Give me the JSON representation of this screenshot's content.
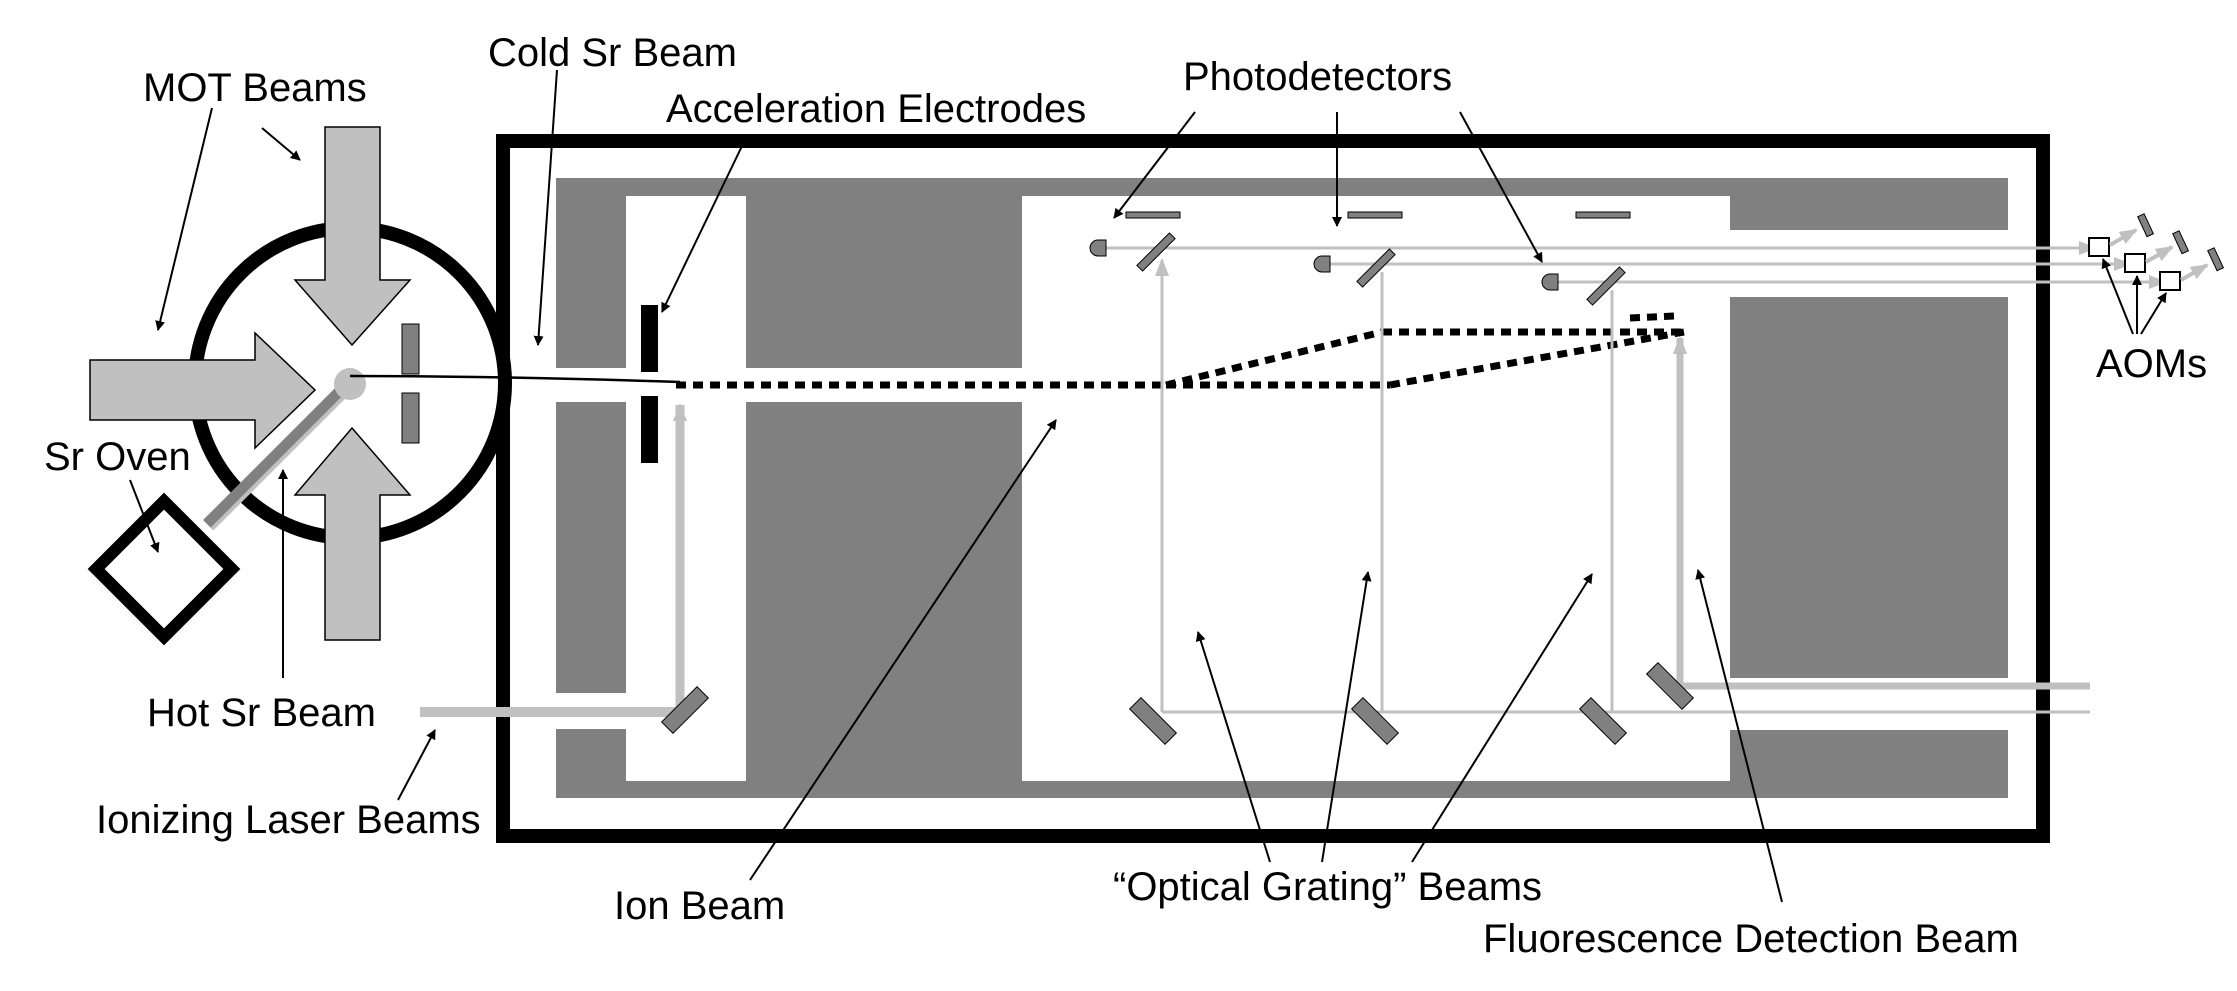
{
  "labels": {
    "mot_beams": "MOT Beams",
    "cold_sr_beam": "Cold Sr Beam",
    "acceleration_electrodes": "Acceleration Electrodes",
    "photodetectors": "Photodetectors",
    "sr_oven": "Sr Oven",
    "hot_sr_beam": "Hot Sr Beam",
    "ionizing_laser_beams": "Ionizing Laser Beams",
    "ion_beam": "Ion Beam",
    "optical_grating_beams": "“Optical Grating” Beams",
    "fluorescence_detection_beam": "Fluorescence Detection Beam",
    "aoms": "AOMs"
  },
  "colors": {
    "outline": "#000000",
    "dark_gray": "#808080",
    "light_gray": "#c0c0c0",
    "background": "#ffffff"
  }
}
